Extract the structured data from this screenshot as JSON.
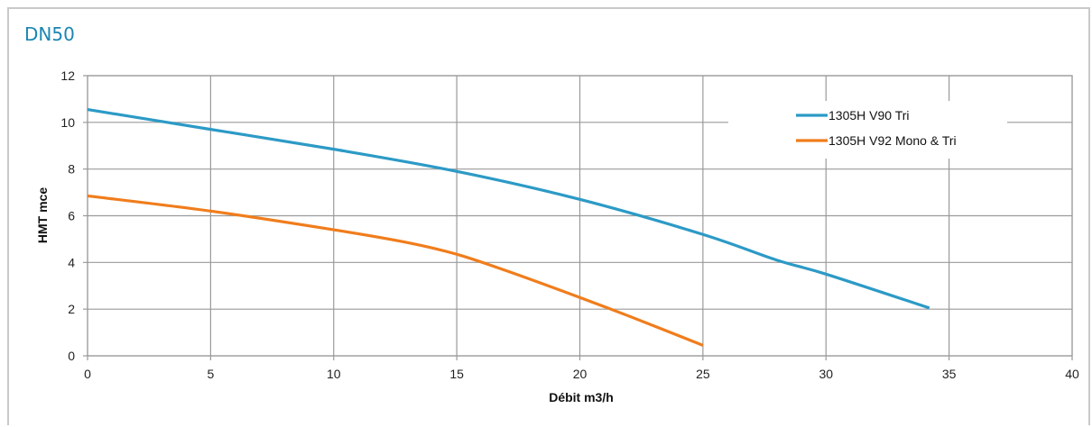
{
  "chart_data": {
    "type": "line",
    "title": "DN50",
    "xlabel": "Débit m3/h",
    "ylabel": "HMT mce",
    "xlim": [
      0,
      40
    ],
    "ylim": [
      0,
      12
    ],
    "xticks": [
      "0",
      "5",
      "10",
      "15",
      "20",
      "25",
      "30",
      "35",
      "40"
    ],
    "yticks": [
      "0",
      "2",
      "4",
      "6",
      "8",
      "10",
      "12"
    ],
    "grid": true,
    "legend_position": "top-right",
    "series": [
      {
        "name": "1305H V90 Tri",
        "color": "#2c9ac6",
        "x": [
          0,
          5,
          10,
          15,
          20,
          25,
          28,
          30,
          34.2
        ],
        "y": [
          10.55,
          9.7,
          8.85,
          7.9,
          6.7,
          5.2,
          4.1,
          3.5,
          2.05
        ]
      },
      {
        "name": "1305H V92 Mono & Tri",
        "color": "#f07d1c",
        "x": [
          0,
          5,
          10,
          13,
          15,
          17,
          20,
          22,
          25
        ],
        "y": [
          6.85,
          6.2,
          5.4,
          4.85,
          4.35,
          3.65,
          2.5,
          1.7,
          0.45
        ]
      }
    ]
  }
}
